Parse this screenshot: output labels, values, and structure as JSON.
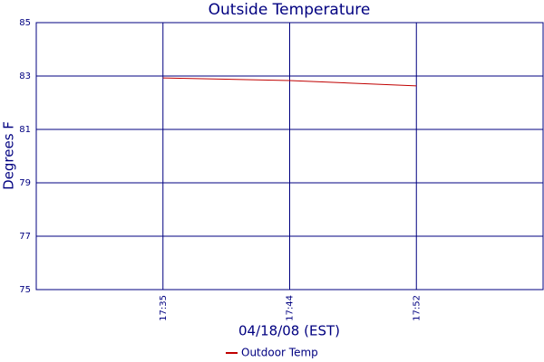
{
  "chart_data": {
    "type": "line",
    "title": "Outside Temperature",
    "x_label": "04/18/08 (EST)",
    "y_label": "Degrees F",
    "categories": [
      null,
      "17:35",
      "17:44",
      "17:52",
      null
    ],
    "series": [
      {
        "name": "Outdoor Temp",
        "color": "#c00000",
        "values": [
          null,
          82.93,
          82.83,
          82.63,
          null
        ]
      }
    ],
    "ylim": [
      75,
      85
    ],
    "yticks": [
      75,
      77,
      79,
      81,
      83,
      85
    ],
    "grid": true
  }
}
